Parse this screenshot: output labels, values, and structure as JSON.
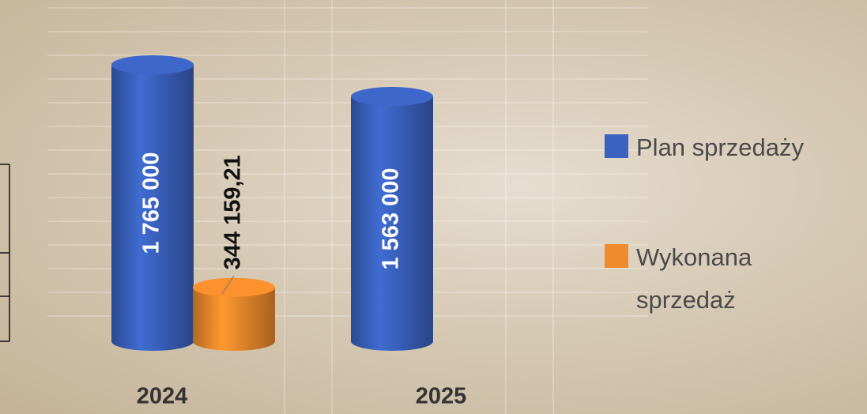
{
  "chart_data": {
    "type": "cylinder-bar",
    "categories": [
      "2024",
      "2025"
    ],
    "series": [
      {
        "name": "Plan sprzedaży",
        "color": "#3a62c0",
        "values": [
          1765000,
          1563000
        ],
        "value_labels": [
          "1 765 000",
          "1 563 000"
        ]
      },
      {
        "name": "Wykonana sprzedaż",
        "color": "#f08a2c",
        "values": [
          344159.21,
          null
        ],
        "value_labels": [
          "344 159,21",
          null
        ]
      }
    ],
    "legend": "right"
  }
}
